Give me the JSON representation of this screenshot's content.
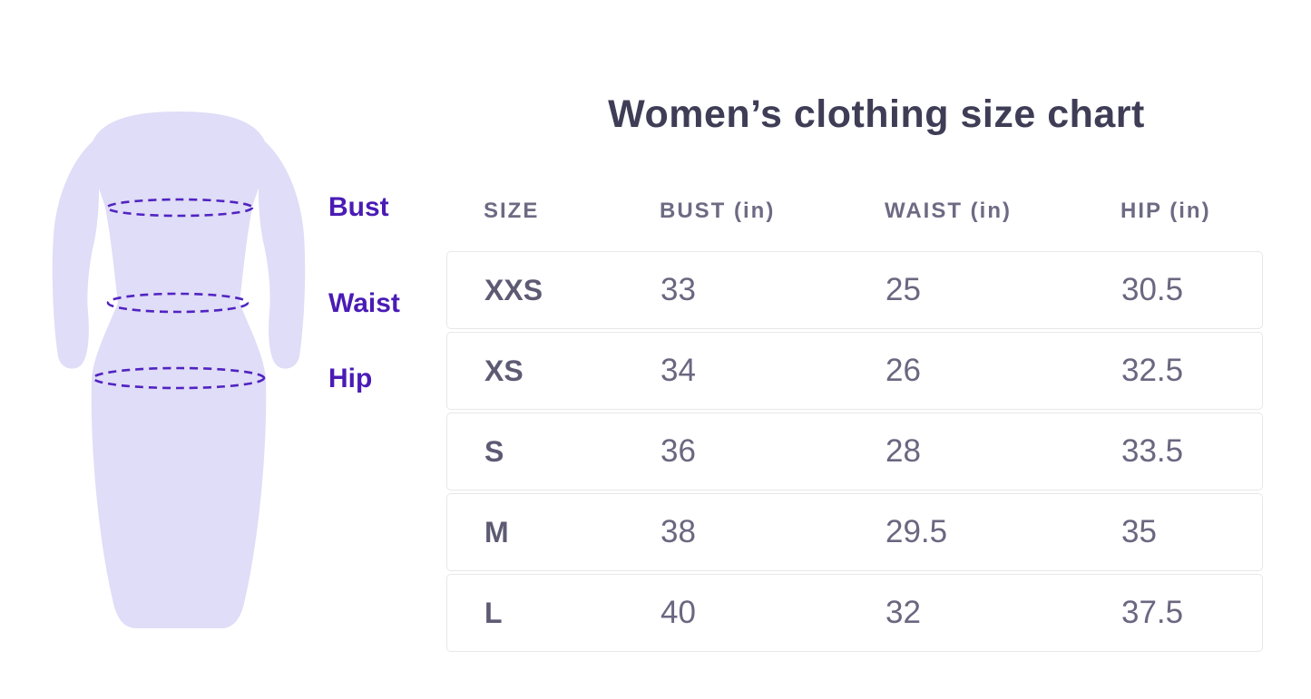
{
  "title": "Women’s clothing size chart",
  "diagram": {
    "labels": {
      "bust": "Bust",
      "waist": "Waist",
      "hip": "Hip"
    }
  },
  "chart_data": {
    "type": "table",
    "title": "Women’s clothing size chart",
    "columns": [
      {
        "key": "size",
        "label": "SIZE"
      },
      {
        "key": "bust",
        "label": "BUST (in)"
      },
      {
        "key": "waist",
        "label": "WAIST (in)"
      },
      {
        "key": "hip",
        "label": "HIP (in)"
      }
    ],
    "rows": [
      {
        "size": "XXS",
        "bust": "33",
        "waist": "25",
        "hip": "30.5"
      },
      {
        "size": "XS",
        "bust": "34",
        "waist": "26",
        "hip": "32.5"
      },
      {
        "size": "S",
        "bust": "36",
        "waist": "28",
        "hip": "33.5"
      },
      {
        "size": "M",
        "bust": "38",
        "waist": "29.5",
        "hip": "35"
      },
      {
        "size": "L",
        "bust": "40",
        "waist": "32",
        "hip": "37.5"
      }
    ]
  },
  "colors": {
    "title_text": "#3f3d56",
    "header_text": "#6d6a83",
    "cell_text": "#6a6780",
    "size_label_text": "#5d5a73",
    "measurement_label_text": "#4a1cb5",
    "dress_fill": "#dfddf7",
    "measure_line": "#5123c1",
    "row_border": "#e7e7ea",
    "background": "#ffffff"
  }
}
